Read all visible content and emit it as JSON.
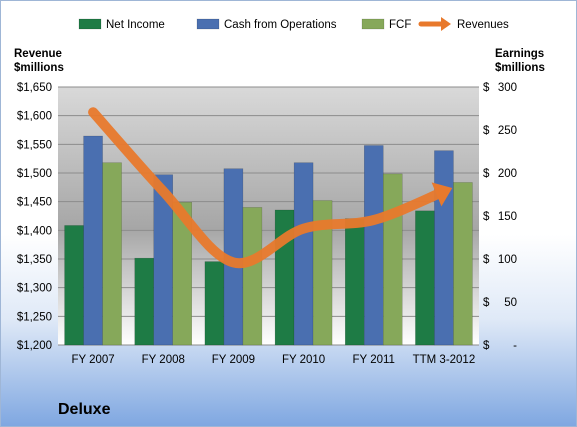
{
  "chart_data": {
    "type": "bar",
    "categories": [
      "FY 2007",
      "FY 2008",
      "FY 2009",
      "FY 2010",
      "FY 2011",
      "TTM 3-2012"
    ],
    "series": [
      {
        "name": "Net Income",
        "axis": "right",
        "color": "#1e7b45",
        "values": [
          139,
          101,
          97,
          157,
          147,
          156
        ]
      },
      {
        "name": "Cash from Operations",
        "axis": "right",
        "color": "#4a6fb0",
        "values": [
          243,
          198,
          205,
          212,
          232,
          226
        ]
      },
      {
        "name": "FCF",
        "axis": "right",
        "color": "#86a85a",
        "values": [
          212,
          166,
          160,
          168,
          199,
          189
        ]
      },
      {
        "name": "Revenues",
        "axis": "left",
        "type": "line",
        "color": "#e8792c",
        "values": [
          1606,
          1468,
          1344,
          1403,
          1418,
          1468
        ]
      }
    ],
    "left_axis": {
      "title_lines": [
        "Revenue",
        "$millions"
      ],
      "ylim": [
        1200,
        1650
      ],
      "ticks": [
        1200,
        1250,
        1300,
        1350,
        1400,
        1450,
        1500,
        1550,
        1600,
        1650
      ],
      "tick_labels": [
        "$1,200",
        "$1,250",
        "$1,300",
        "$1,350",
        "$1,400",
        "$1,450",
        "$1,500",
        "$1,550",
        "$1,600",
        "$1,650"
      ]
    },
    "right_axis": {
      "title_lines": [
        "Earnings",
        "$millions"
      ],
      "ylim": [
        0,
        300
      ],
      "ticks": [
        0,
        50,
        100,
        150,
        200,
        250,
        300
      ],
      "tick_labels": [
        "$-",
        "$50",
        "$100",
        "$150",
        "$200",
        "$250",
        "$300"
      ]
    },
    "legend_position": "top",
    "gridlines": true
  },
  "company": "Deluxe"
}
